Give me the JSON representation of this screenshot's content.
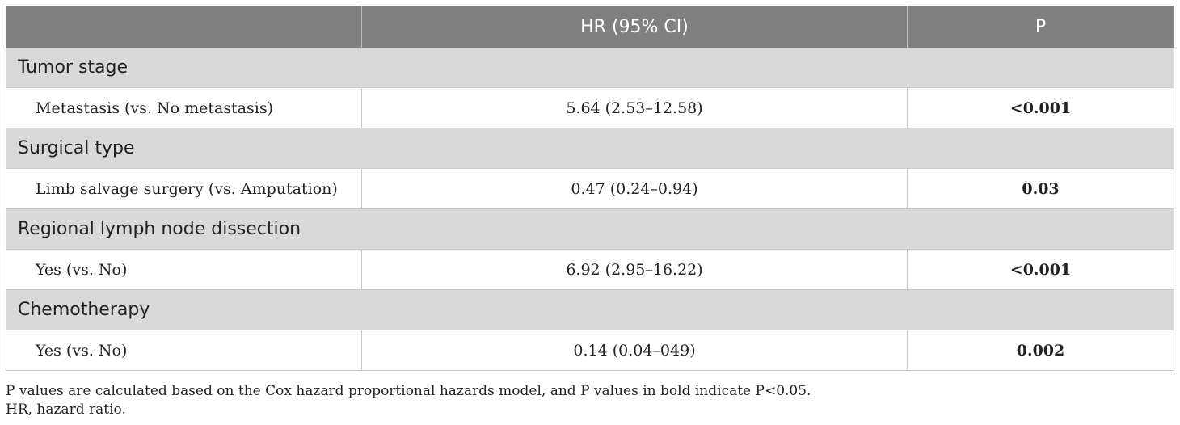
{
  "table": {
    "headers": [
      "",
      "HR (95% CI)",
      "P"
    ],
    "groups": [
      {
        "title": "Tumor stage",
        "row": {
          "label": "Metastasis (vs. No metastasis)",
          "hr": "5.64 (2.53–12.58)",
          "p": "<0.001"
        }
      },
      {
        "title": "Surgical type",
        "row": {
          "label": "Limb salvage surgery (vs. Amputation)",
          "hr": "0.47 (0.24–0.94)",
          "p": "0.03"
        }
      },
      {
        "title": "Regional lymph node dissection",
        "row": {
          "label": "Yes (vs. No)",
          "hr": "6.92 (2.95–16.22)",
          "p": "<0.001"
        }
      },
      {
        "title": "Chemotherapy",
        "row": {
          "label": "Yes (vs. No)",
          "hr": "0.14 (0.04–049)",
          "p": "0.002"
        }
      }
    ]
  },
  "footnotes": [
    "P values are calculated based on the Cox hazard proportional hazards model, and P values in bold indicate P<0.05.",
    "HR, hazard ratio."
  ],
  "colors": {
    "header_bg": "#808080",
    "group_bg": "#d9d9d9"
  }
}
